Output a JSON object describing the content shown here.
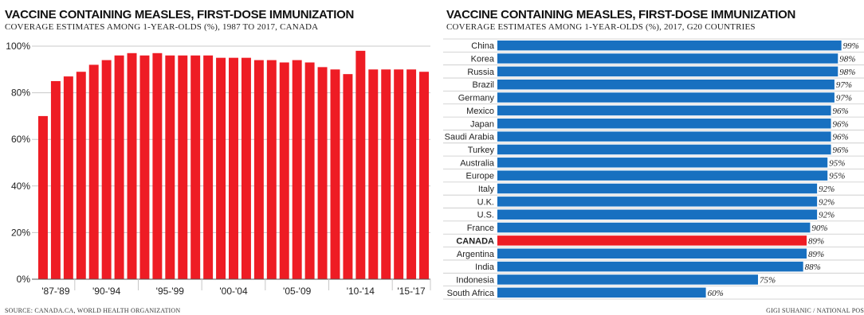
{
  "colors": {
    "red": "#ee1c24",
    "blue": "#1870c0",
    "grid": "#c8c8c8",
    "axis": "#555555"
  },
  "left": {
    "title": "VACCINE CONTAINING MEASLES, FIRST-DOSE IMMUNIZATION",
    "subtitle": "COVERAGE ESTIMATES AMONG 1-YEAR-OLDS (%), 1987 TO 2017, CANADA"
  },
  "right": {
    "title": "VACCINE CONTAINING MEASLES, FIRST-DOSE IMMUNIZATION",
    "subtitle": "COVERAGE ESTIMATES AMONG 1-YEAR-OLDS (%), 2017, G20 COUNTRIES"
  },
  "footer": {
    "source": "SOURCE: CANADA.CA, WORLD HEALTH ORGANIZATION",
    "credit": "GIGI SUHANIC / NATIONAL POS"
  },
  "chart_data": [
    {
      "type": "bar",
      "orientation": "vertical",
      "x": [
        1987,
        1988,
        1989,
        1990,
        1991,
        1992,
        1993,
        1994,
        1995,
        1996,
        1997,
        1998,
        1999,
        2000,
        2001,
        2002,
        2003,
        2004,
        2005,
        2006,
        2007,
        2008,
        2009,
        2010,
        2011,
        2012,
        2013,
        2014,
        2015,
        2016,
        2017
      ],
      "values": [
        70,
        85,
        87,
        89,
        92,
        94,
        96,
        97,
        96,
        97,
        96,
        96,
        96,
        96,
        95,
        95,
        95,
        94,
        94,
        93,
        94,
        93,
        91,
        90,
        88,
        98,
        90,
        90,
        90,
        90,
        89
      ],
      "x_tick_labels": [
        "'87-'89",
        "'90-'94",
        "'95-'99",
        "'00-'04",
        "'05-'09",
        "'10-'14",
        "'15-'17"
      ],
      "y_tick_labels": [
        "0%",
        "20%",
        "40%",
        "60%",
        "80%",
        "100%"
      ],
      "ylim": [
        0,
        100
      ],
      "grid": true,
      "color": "#ee1c24"
    },
    {
      "type": "bar",
      "orientation": "horizontal",
      "categories": [
        "China",
        "Korea",
        "Russia",
        "Brazil",
        "Germany",
        "Mexico",
        "Japan",
        "Saudi Arabia",
        "Turkey",
        "Australia",
        "Europe",
        "Italy",
        "U.K.",
        "U.S.",
        "France",
        "CANADA",
        "Argentina",
        "India",
        "Indonesia",
        "South Africa"
      ],
      "values": [
        99,
        98,
        98,
        97,
        97,
        96,
        96,
        96,
        96,
        95,
        95,
        92,
        92,
        92,
        90,
        89,
        89,
        88,
        75,
        60
      ],
      "value_labels": [
        "99%",
        "98%",
        "98%",
        "97%",
        "97%",
        "96%",
        "96%",
        "96%",
        "96%",
        "95%",
        "95%",
        "92%",
        "92%",
        "92%",
        "90%",
        "89%",
        "89%",
        "88%",
        "75%",
        "60%"
      ],
      "highlight": "CANADA",
      "highlight_color": "#ee1c24",
      "color": "#1870c0",
      "xlim": [
        0,
        100
      ],
      "grid": true
    }
  ]
}
